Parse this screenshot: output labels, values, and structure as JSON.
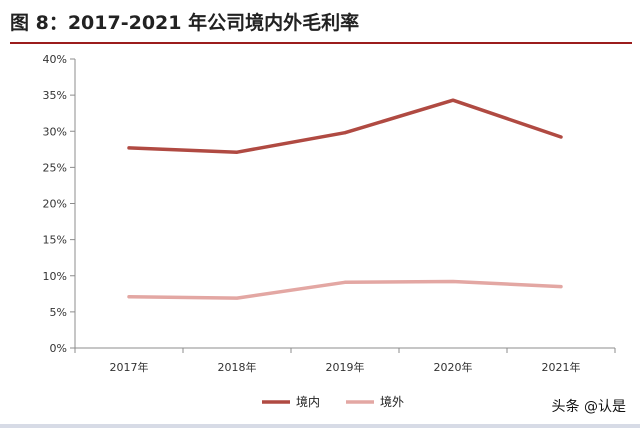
{
  "header": {
    "title": "图 8：2017-2021 年公司境内外毛利率"
  },
  "watermark": "头条 @认是",
  "chart_data": {
    "type": "line",
    "title": "图 8：2017-2021 年公司境内外毛利率",
    "categories": [
      "2017年",
      "2018年",
      "2019年",
      "2020年",
      "2021年"
    ],
    "ylim": [
      0,
      40
    ],
    "yticks": [
      "0%",
      "5%",
      "10%",
      "15%",
      "20%",
      "25%",
      "30%",
      "35%",
      "40%"
    ],
    "grid": false,
    "legend": "bottom",
    "series": [
      {
        "name": "境内",
        "color": "#b04a42",
        "values": [
          27.7,
          27.1,
          29.8,
          34.3,
          29.2
        ]
      },
      {
        "name": "境外",
        "color": "#e3a7a3",
        "values": [
          7.1,
          6.9,
          9.1,
          9.2,
          8.5
        ]
      }
    ]
  }
}
